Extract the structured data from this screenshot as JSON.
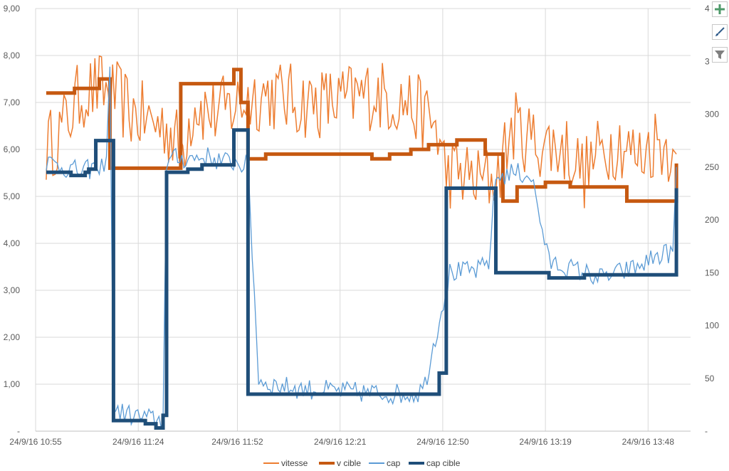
{
  "chart_data": {
    "type": "line",
    "title": "",
    "xlabel": "",
    "ylabel": "",
    "y2label": "",
    "ylim": [
      0,
      9
    ],
    "y2lim": [
      0,
      400
    ],
    "xlim": [
      "24/9/16 10:55",
      "24/9/16 14:00"
    ],
    "grid": true,
    "legend": "bottom",
    "y_tick_labels": [
      "-",
      "1,00",
      "2,00",
      "3,00",
      "4,00",
      "5,00",
      "6,00",
      "7,00",
      "8,00",
      "9,00"
    ],
    "y2_tick_labels": [
      "-",
      "50",
      "100",
      "150",
      "200",
      "250",
      "300",
      "3",
      "4"
    ],
    "x_tick_labels": [
      "24/9/16 10:55",
      "24/9/16 11:24",
      "24/9/16 11:52",
      "24/9/16 12:21",
      "24/9/16 12:50",
      "24/9/16 13:19",
      "24/9/16 13:48"
    ],
    "series": [
      {
        "name": "vitesse",
        "axis": "left",
        "color": "#ED7D31",
        "width": 1.5,
        "style": "noisy",
        "x": [
          "10:58",
          "11:03",
          "11:08",
          "11:13",
          "11:18",
          "11:22",
          "11:27",
          "11:32",
          "11:36",
          "11:40",
          "11:44",
          "11:48",
          "11:55",
          "12:00",
          "12:10",
          "12:20",
          "12:30",
          "12:40",
          "12:48",
          "12:51",
          "12:55",
          "13:00",
          "13:05",
          "13:10",
          "13:15",
          "13:20",
          "13:25",
          "13:30",
          "13:35",
          "13:40",
          "13:45",
          "13:50",
          "13:55",
          "13:56"
        ],
        "y": [
          6.0,
          6.5,
          7.2,
          7.3,
          7.1,
          6.8,
          6.6,
          6.5,
          6.0,
          7.0,
          6.8,
          6.8,
          7.1,
          7.2,
          7.0,
          7.0,
          7.2,
          7.0,
          6.5,
          5.5,
          5.5,
          5.3,
          5.4,
          6.5,
          6.2,
          6.1,
          6.0,
          5.5,
          6.0,
          6.2,
          5.8,
          6.2,
          6.0,
          5.9
        ]
      },
      {
        "name": "v cible",
        "axis": "left",
        "color": "#C65911",
        "width": 5,
        "style": "step",
        "x": [
          "10:58",
          "11:01",
          "11:06",
          "11:13",
          "11:16",
          "11:32",
          "11:36",
          "11:51",
          "11:53",
          "11:55",
          "12:00",
          "12:20",
          "12:30",
          "12:35",
          "12:41",
          "12:46",
          "12:54",
          "13:02",
          "13:07",
          "13:11",
          "13:14",
          "13:19",
          "13:26",
          "13:34",
          "13:42",
          "13:50",
          "13:56"
        ],
        "y": [
          7.2,
          7.2,
          7.3,
          7.5,
          5.6,
          5.6,
          7.4,
          7.7,
          7.0,
          5.8,
          5.9,
          5.9,
          5.8,
          5.9,
          6.0,
          6.1,
          6.2,
          5.9,
          4.9,
          5.2,
          5.2,
          5.3,
          5.2,
          5.2,
          4.9,
          4.9,
          5.7
        ]
      },
      {
        "name": "cap",
        "axis": "right",
        "color": "#5B9BD5",
        "width": 1.3,
        "style": "noisy",
        "x": [
          "10:58",
          "11:03",
          "11:08",
          "11:12",
          "11:13",
          "11:15",
          "11:16",
          "11:17",
          "11:22",
          "11:27",
          "11:31",
          "11:32",
          "11:34",
          "11:38",
          "11:43",
          "11:48",
          "11:52",
          "11:55",
          "11:58",
          "12:00",
          "12:10",
          "12:20",
          "12:30",
          "12:40",
          "12:43",
          "12:45",
          "12:52",
          "13:00",
          "13:03",
          "13:05",
          "13:10",
          "13:15",
          "13:20",
          "13:25",
          "13:30",
          "13:35",
          "13:40",
          "13:45",
          "13:50",
          "13:55",
          "13:56"
        ],
        "y": [
          255,
          250,
          245,
          250,
          245,
          260,
          345,
          20,
          15,
          12,
          10,
          255,
          258,
          258,
          260,
          255,
          255,
          250,
          50,
          45,
          40,
          38,
          36,
          35,
          36,
          45,
          150,
          152,
          160,
          240,
          245,
          242,
          160,
          155,
          150,
          145,
          150,
          155,
          165,
          170,
          250
        ]
      },
      {
        "name": "cap cible",
        "axis": "right",
        "color": "#1F4E79",
        "width": 5,
        "style": "step",
        "x": [
          "10:58",
          "11:02",
          "11:05",
          "11:09",
          "11:10",
          "11:12",
          "11:13",
          "11:17",
          "11:26",
          "11:29",
          "11:31",
          "11:32",
          "11:38",
          "11:42",
          "11:46",
          "11:51",
          "11:53",
          "11:55",
          "12:05",
          "12:20",
          "12:30",
          "12:38",
          "12:40",
          "12:41",
          "12:49",
          "12:51",
          "13:04",
          "13:05",
          "13:10",
          "13:20",
          "13:30",
          "13:45",
          "13:46",
          "13:56"
        ],
        "y": [
          245,
          245,
          242,
          245,
          248,
          275,
          275,
          10,
          7,
          3,
          15,
          245,
          248,
          252,
          252,
          285,
          285,
          35,
          35,
          35,
          35,
          35,
          35,
          35,
          55,
          230,
          230,
          150,
          150,
          145,
          148,
          148,
          148,
          230
        ]
      }
    ]
  },
  "legend_labels": [
    "vitesse",
    "v cible",
    "cap",
    "cap cible"
  ],
  "toolbar": {
    "add_icon": "plus-icon",
    "style_icon": "brush-icon",
    "filter_icon": "filter-icon"
  }
}
